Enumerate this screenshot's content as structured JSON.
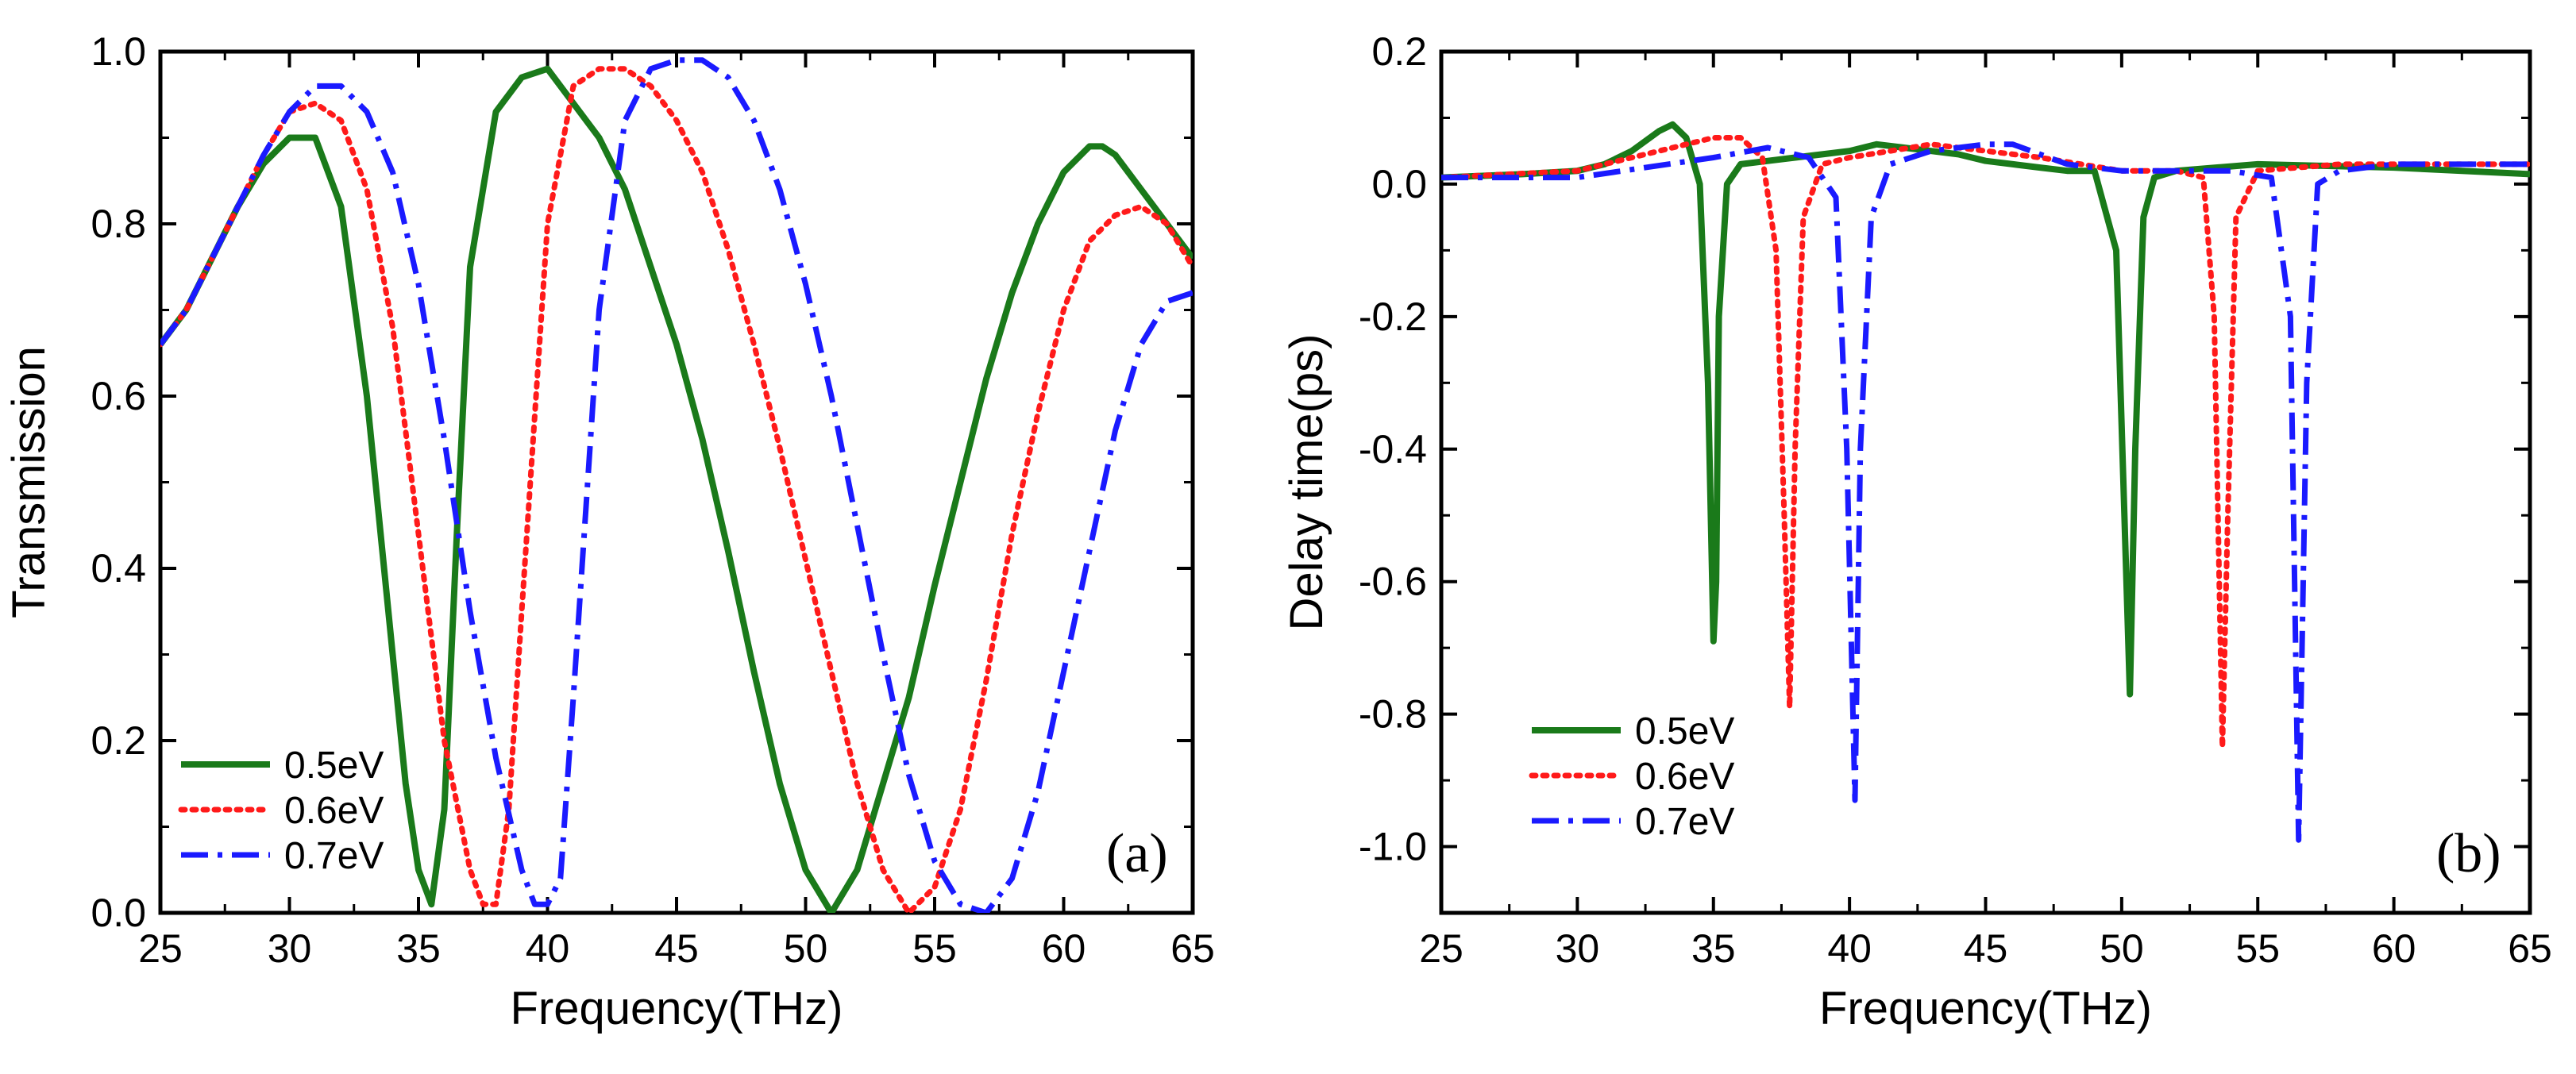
{
  "chart_data": [
    {
      "panel": "a",
      "type": "line",
      "xlabel": "Frequency(THz)",
      "ylabel": "Transmission",
      "annotation": "(a)",
      "xlim": [
        25,
        65
      ],
      "ylim": [
        0,
        1.0
      ],
      "xticks": [
        25,
        30,
        35,
        40,
        45,
        50,
        55,
        60,
        65
      ],
      "xtick_labels": [
        "25",
        "30",
        "35",
        "40",
        "45",
        "50",
        "55",
        "60",
        "65"
      ],
      "yticks": [
        0,
        0.2,
        0.4,
        0.6,
        0.8,
        1.0
      ],
      "ytick_labels": [
        "0.0",
        "0.2",
        "0.4",
        "0.6",
        "0.8",
        "1.0"
      ],
      "legend_position": "bottom-left",
      "series": [
        {
          "name": "0.5eV",
          "color": "#1a7a1a",
          "style": "solid",
          "x": [
            25,
            26,
            27,
            28,
            29,
            30,
            31,
            32,
            33,
            34,
            34.5,
            35,
            35.5,
            36,
            36.5,
            37,
            38,
            39,
            40,
            41,
            42,
            43,
            44,
            45,
            46,
            47,
            48,
            49,
            50,
            51,
            52,
            53,
            54,
            55,
            56,
            57,
            58,
            59,
            60,
            61,
            61.5,
            62,
            63,
            64,
            65
          ],
          "y": [
            0.66,
            0.7,
            0.76,
            0.82,
            0.87,
            0.9,
            0.9,
            0.82,
            0.6,
            0.3,
            0.15,
            0.05,
            0.01,
            0.12,
            0.45,
            0.75,
            0.93,
            0.97,
            0.98,
            0.94,
            0.9,
            0.84,
            0.75,
            0.66,
            0.55,
            0.42,
            0.28,
            0.15,
            0.05,
            0.0,
            0.05,
            0.15,
            0.25,
            0.38,
            0.5,
            0.62,
            0.72,
            0.8,
            0.86,
            0.89,
            0.89,
            0.88,
            0.84,
            0.8,
            0.76
          ]
        },
        {
          "name": "0.6eV",
          "color": "#ff1a1a",
          "style": "dotted",
          "x": [
            25,
            26,
            27,
            28,
            29,
            30,
            31,
            32,
            33,
            34,
            35,
            36,
            37,
            37.5,
            38,
            38.5,
            39,
            40,
            41,
            42,
            43,
            44,
            45,
            46,
            47,
            48,
            49,
            50,
            51,
            52,
            53,
            54,
            55,
            56,
            57,
            58,
            59,
            60,
            61,
            62,
            63,
            64,
            65
          ],
          "y": [
            0.66,
            0.7,
            0.76,
            0.82,
            0.88,
            0.93,
            0.94,
            0.92,
            0.84,
            0.68,
            0.44,
            0.2,
            0.05,
            0.01,
            0.01,
            0.12,
            0.35,
            0.8,
            0.96,
            0.98,
            0.98,
            0.96,
            0.92,
            0.86,
            0.77,
            0.66,
            0.54,
            0.41,
            0.28,
            0.15,
            0.05,
            0.0,
            0.03,
            0.12,
            0.27,
            0.44,
            0.58,
            0.7,
            0.78,
            0.81,
            0.82,
            0.8,
            0.75
          ]
        },
        {
          "name": "0.7eV",
          "color": "#1a1aff",
          "style": "dashdot",
          "x": [
            25,
            26,
            27,
            28,
            29,
            30,
            31,
            32,
            33,
            34,
            35,
            36,
            37,
            38,
            39,
            39.5,
            40,
            40.5,
            41,
            42,
            43,
            44,
            45,
            46,
            47,
            48,
            49,
            50,
            51,
            52,
            53,
            54,
            55,
            56,
            57,
            58,
            59,
            60,
            61,
            62,
            63,
            64,
            65
          ],
          "y": [
            0.66,
            0.7,
            0.76,
            0.82,
            0.88,
            0.93,
            0.96,
            0.96,
            0.93,
            0.86,
            0.73,
            0.55,
            0.35,
            0.18,
            0.05,
            0.01,
            0.01,
            0.04,
            0.25,
            0.7,
            0.92,
            0.98,
            0.99,
            0.99,
            0.97,
            0.92,
            0.84,
            0.73,
            0.6,
            0.45,
            0.3,
            0.16,
            0.06,
            0.01,
            0.0,
            0.04,
            0.14,
            0.28,
            0.42,
            0.56,
            0.66,
            0.71,
            0.72
          ]
        }
      ]
    },
    {
      "panel": "b",
      "type": "line",
      "xlabel": "Frequency(THz)",
      "ylabel": "Delay time(ps)",
      "annotation": "(b)",
      "xlim": [
        25,
        65
      ],
      "ylim": [
        -1.1,
        0.2
      ],
      "xticks": [
        25,
        30,
        35,
        40,
        45,
        50,
        55,
        60,
        65
      ],
      "xtick_labels": [
        "25",
        "30",
        "35",
        "40",
        "45",
        "50",
        "55",
        "60",
        "65"
      ],
      "yticks": [
        0.2,
        0.0,
        -0.2,
        -0.4,
        -0.6,
        -0.8,
        -1.0
      ],
      "ytick_labels": [
        "0.2",
        "0.0",
        "-0.2",
        "-0.4",
        "-0.6",
        "-0.8",
        "-1.0"
      ],
      "legend_position": "bottom-left",
      "series": [
        {
          "name": "0.5eV",
          "color": "#1a7a1a",
          "style": "solid",
          "x": [
            25,
            28,
            30,
            31,
            32,
            33,
            33.5,
            34,
            34.5,
            34.8,
            35.0,
            35.1,
            35.2,
            35.5,
            36,
            37,
            38,
            39,
            40,
            41,
            42,
            43,
            44,
            45,
            46,
            47,
            48,
            49,
            49.8,
            50.1,
            50.3,
            50.5,
            50.8,
            51.2,
            52,
            55,
            60,
            65
          ],
          "y": [
            0.01,
            0.015,
            0.02,
            0.03,
            0.05,
            0.08,
            0.09,
            0.07,
            0.0,
            -0.3,
            -0.69,
            -0.6,
            -0.2,
            0.0,
            0.03,
            0.035,
            0.04,
            0.045,
            0.05,
            0.06,
            0.055,
            0.05,
            0.045,
            0.035,
            0.03,
            0.025,
            0.02,
            0.02,
            -0.1,
            -0.5,
            -0.77,
            -0.4,
            -0.05,
            0.01,
            0.02,
            0.03,
            0.025,
            0.015
          ]
        },
        {
          "name": "0.6eV",
          "color": "#ff1a1a",
          "style": "dotted",
          "x": [
            25,
            30,
            33,
            35,
            36,
            36.8,
            37.3,
            37.6,
            37.8,
            38.0,
            38.3,
            39,
            40,
            43,
            47,
            50,
            52,
            53,
            53.4,
            53.7,
            53.9,
            54.2,
            55,
            58,
            65
          ],
          "y": [
            0.01,
            0.02,
            0.05,
            0.07,
            0.07,
            0.04,
            -0.1,
            -0.5,
            -0.79,
            -0.4,
            -0.05,
            0.03,
            0.04,
            0.06,
            0.04,
            0.02,
            0.02,
            0.01,
            -0.2,
            -0.85,
            -0.5,
            -0.05,
            0.02,
            0.03,
            0.03
          ]
        },
        {
          "name": "0.7eV",
          "color": "#1a1aff",
          "style": "dashdot",
          "x": [
            25,
            30,
            35,
            37,
            38.5,
            39.5,
            39.9,
            40.2,
            40.4,
            40.8,
            41.5,
            43,
            45,
            46,
            48,
            50,
            54,
            55.5,
            56.2,
            56.5,
            56.8,
            57.2,
            58,
            60,
            65
          ],
          "y": [
            0.01,
            0.01,
            0.04,
            0.055,
            0.04,
            -0.02,
            -0.4,
            -0.93,
            -0.4,
            -0.05,
            0.03,
            0.05,
            0.06,
            0.06,
            0.03,
            0.02,
            0.02,
            0.01,
            -0.2,
            -0.99,
            -0.3,
            0.0,
            0.02,
            0.03,
            0.03
          ]
        }
      ]
    }
  ]
}
